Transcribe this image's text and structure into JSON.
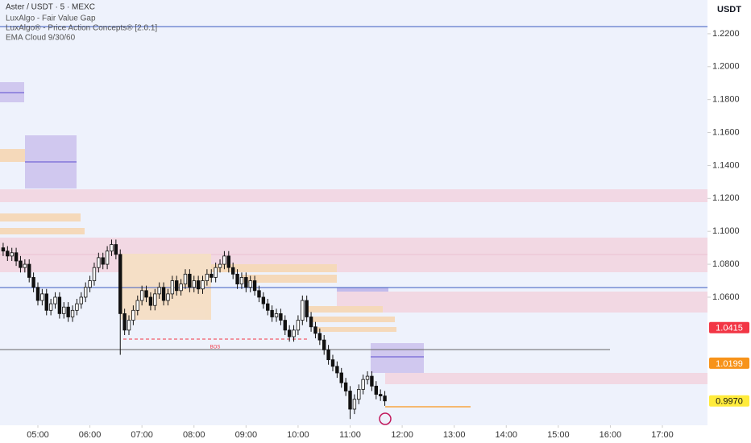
{
  "chart_data": {
    "type": "candlestick",
    "title": "Aster / USDT · 5 · MEXC",
    "indicators": [
      "LuxAlgo - Fair Value Gap",
      "LuxAlgo® - Price Action Concepts® [2.0.1]",
      "EMA Cloud 9/30/60"
    ],
    "y_axis_label": "USDT",
    "annotation": "BOS",
    "ylim": [
      0.9822,
      1.2405
    ],
    "xlim": [
      -0.73,
      162.4
    ],
    "yticks": [
      {
        "value": 1.22,
        "label": "1.2200"
      },
      {
        "value": 1.2,
        "label": "1.2000"
      },
      {
        "value": 1.18,
        "label": "1.1800"
      },
      {
        "value": 1.16,
        "label": "1.1600"
      },
      {
        "value": 1.14,
        "label": "1.1400"
      },
      {
        "value": 1.12,
        "label": "1.1200"
      },
      {
        "value": 1.1,
        "label": "1.1000"
      },
      {
        "value": 1.08,
        "label": "1.0800"
      },
      {
        "value": 1.06,
        "label": "1.0600"
      }
    ],
    "xticks": [
      {
        "value": 8,
        "label": "05:00"
      },
      {
        "value": 20,
        "label": "06:00"
      },
      {
        "value": 32,
        "label": "07:00"
      },
      {
        "value": 44,
        "label": "08:00"
      },
      {
        "value": 56,
        "label": "09:00"
      },
      {
        "value": 68,
        "label": "10:00"
      },
      {
        "value": 80,
        "label": "11:00"
      },
      {
        "value": 92,
        "label": "12:00"
      },
      {
        "value": 104,
        "label": "13:00"
      },
      {
        "value": 116,
        "label": "14:00"
      },
      {
        "value": 128,
        "label": "15:00"
      },
      {
        "value": 140,
        "label": "16:00"
      },
      {
        "value": 152,
        "label": "17:00"
      }
    ],
    "price_labels": [
      {
        "value": 1.0415,
        "label": "1.0415",
        "color": "#f23645"
      },
      {
        "value": 1.0199,
        "label": "1.0199",
        "color": "#f7931a"
      },
      {
        "value": 0.997,
        "label": "0.9970",
        "color": "#ffeb3b"
      }
    ],
    "up_color": "#ffffff",
    "down_color": "#111111",
    "candles": [
      [
        1.09,
        1.093,
        1.085,
        1.088
      ],
      [
        1.088,
        1.091,
        1.082,
        1.085
      ],
      [
        1.085,
        1.09,
        1.082,
        1.087
      ],
      [
        1.087,
        1.09,
        1.079,
        1.082
      ],
      [
        1.082,
        1.085,
        1.075,
        1.078
      ],
      [
        1.078,
        1.083,
        1.075,
        1.08
      ],
      [
        1.08,
        1.083,
        1.069,
        1.072
      ],
      [
        1.072,
        1.075,
        1.063,
        1.066
      ],
      [
        1.066,
        1.069,
        1.055,
        1.058
      ],
      [
        1.058,
        1.065,
        1.055,
        1.062
      ],
      [
        1.062,
        1.065,
        1.049,
        1.052
      ],
      [
        1.052,
        1.059,
        1.049,
        1.056
      ],
      [
        1.056,
        1.063,
        1.053,
        1.06
      ],
      [
        1.06,
        1.063,
        1.047,
        1.05
      ],
      [
        1.05,
        1.057,
        1.047,
        1.054
      ],
      [
        1.054,
        1.057,
        1.045,
        1.048
      ],
      [
        1.048,
        1.055,
        1.045,
        1.052
      ],
      [
        1.052,
        1.059,
        1.049,
        1.056
      ],
      [
        1.056,
        1.063,
        1.053,
        1.06
      ],
      [
        1.06,
        1.069,
        1.057,
        1.066
      ],
      [
        1.066,
        1.073,
        1.063,
        1.07
      ],
      [
        1.07,
        1.081,
        1.067,
        1.078
      ],
      [
        1.078,
        1.087,
        1.075,
        1.084
      ],
      [
        1.084,
        1.087,
        1.077,
        1.08
      ],
      [
        1.08,
        1.091,
        1.077,
        1.088
      ],
      [
        1.088,
        1.095,
        1.085,
        1.092
      ],
      [
        1.092,
        1.095,
        1.083,
        1.086
      ],
      [
        1.086,
        1.089,
        1.025,
        1.05
      ],
      [
        1.05,
        1.053,
        1.037,
        1.04
      ],
      [
        1.04,
        1.049,
        1.037,
        1.046
      ],
      [
        1.046,
        1.055,
        1.043,
        1.052
      ],
      [
        1.052,
        1.061,
        1.049,
        1.058
      ],
      [
        1.058,
        1.067,
        1.055,
        1.064
      ],
      [
        1.064,
        1.067,
        1.057,
        1.06
      ],
      [
        1.06,
        1.063,
        1.052,
        1.055
      ],
      [
        1.055,
        1.065,
        1.052,
        1.062
      ],
      [
        1.062,
        1.069,
        1.059,
        1.066
      ],
      [
        1.066,
        1.069,
        1.055,
        1.058
      ],
      [
        1.058,
        1.065,
        1.055,
        1.062
      ],
      [
        1.062,
        1.073,
        1.059,
        1.07
      ],
      [
        1.07,
        1.073,
        1.061,
        1.064
      ],
      [
        1.064,
        1.071,
        1.061,
        1.068
      ],
      [
        1.068,
        1.077,
        1.065,
        1.074
      ],
      [
        1.074,
        1.077,
        1.063,
        1.066
      ],
      [
        1.066,
        1.073,
        1.063,
        1.07
      ],
      [
        1.07,
        1.073,
        1.062,
        1.065
      ],
      [
        1.065,
        1.073,
        1.062,
        1.07
      ],
      [
        1.07,
        1.077,
        1.067,
        1.074
      ],
      [
        1.074,
        1.077,
        1.069,
        1.072
      ],
      [
        1.072,
        1.081,
        1.069,
        1.078
      ],
      [
        1.078,
        1.083,
        1.075,
        1.08
      ],
      [
        1.08,
        1.088,
        1.077,
        1.085
      ],
      [
        1.085,
        1.088,
        1.075,
        1.078
      ],
      [
        1.078,
        1.081,
        1.071,
        1.074
      ],
      [
        1.074,
        1.077,
        1.065,
        1.068
      ],
      [
        1.068,
        1.075,
        1.065,
        1.072
      ],
      [
        1.072,
        1.075,
        1.063,
        1.066
      ],
      [
        1.066,
        1.073,
        1.063,
        1.07
      ],
      [
        1.07,
        1.073,
        1.061,
        1.064
      ],
      [
        1.064,
        1.067,
        1.057,
        1.06
      ],
      [
        1.06,
        1.063,
        1.053,
        1.056
      ],
      [
        1.056,
        1.059,
        1.049,
        1.052
      ],
      [
        1.052,
        1.055,
        1.045,
        1.048
      ],
      [
        1.048,
        1.053,
        1.045,
        1.05
      ],
      [
        1.05,
        1.053,
        1.043,
        1.046
      ],
      [
        1.046,
        1.049,
        1.037,
        1.04
      ],
      [
        1.04,
        1.043,
        1.033,
        1.036
      ],
      [
        1.036,
        1.043,
        1.033,
        1.04
      ],
      [
        1.04,
        1.049,
        1.037,
        1.046
      ],
      [
        1.046,
        1.061,
        1.043,
        1.058
      ],
      [
        1.058,
        1.061,
        1.045,
        1.048
      ],
      [
        1.048,
        1.051,
        1.039,
        1.042
      ],
      [
        1.042,
        1.045,
        1.035,
        1.038
      ],
      [
        1.038,
        1.041,
        1.031,
        1.034
      ],
      [
        1.034,
        1.037,
        1.025,
        1.028
      ],
      [
        1.028,
        1.031,
        1.019,
        1.022
      ],
      [
        1.022,
        1.025,
        1.015,
        1.018
      ],
      [
        1.018,
        1.021,
        1.011,
        1.014
      ],
      [
        1.014,
        1.017,
        1.005,
        1.008
      ],
      [
        1.008,
        1.011,
        1.0,
        1.003
      ],
      [
        1.003,
        1.006,
        0.986,
        0.992
      ],
      [
        0.992,
        1.001,
        0.989,
        0.998
      ],
      [
        0.998,
        1.007,
        0.995,
        1.004
      ],
      [
        1.004,
        1.013,
        1.001,
        1.01
      ],
      [
        1.01,
        1.015,
        1.007,
        1.012
      ],
      [
        1.012,
        1.015,
        1.003,
        1.006
      ],
      [
        1.006,
        1.009,
        0.998,
        1.001
      ],
      [
        1.001,
        1.004,
        0.997,
        1.0
      ],
      [
        1.0,
        1.003,
        0.994,
        0.997
      ]
    ]
  }
}
